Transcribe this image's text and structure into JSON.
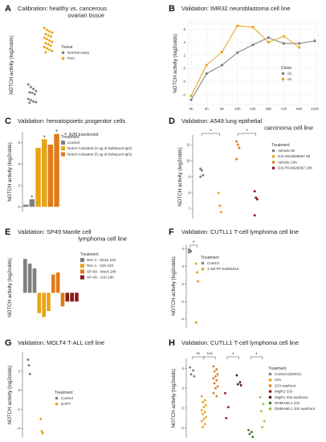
{
  "colors": {
    "gray": "#7f7f7f",
    "gold": "#e8a317",
    "orange_light": "#f2a93b",
    "orange": "#e07b1a",
    "darkorange": "#c65f14",
    "darkred": "#8b1a1a",
    "maroon": "#5a1020",
    "olive": "#3e7a1f",
    "green": "#8fc63f"
  },
  "ylabel": "NOTCH activity (log2odds)",
  "chart_data": [
    {
      "panel": "A",
      "type": "scatter",
      "title": "Calibration: healthy vs. cancerous ovarian tissue",
      "ylabel": "NOTCH activity (log2odds)",
      "legend": {
        "title": "Tissue",
        "entries": [
          "Normal ovary",
          "PSC"
        ],
        "placement": "right"
      },
      "series": [
        {
          "name": "Normal ovary",
          "color": "gray",
          "values": [
            -4.2,
            -4.6,
            -4.9,
            -5.2,
            -5.4,
            -5.5,
            -5.7,
            -6.4,
            -6.6,
            -6.8,
            -6.9,
            -7.0
          ]
        },
        {
          "name": "PSC",
          "color": "gold",
          "values": [
            4.4,
            4.1,
            3.9,
            3.7,
            3.5,
            3.3,
            3.1,
            2.9,
            2.7,
            2.5,
            2.3,
            2.1,
            1.9,
            1.7,
            1.5,
            1.3,
            1.1,
            0.9,
            0.7
          ]
        }
      ],
      "ylim": [
        -7.5,
        5
      ]
    },
    {
      "panel": "B",
      "type": "line",
      "title": "Validation: IMR32 neuroblastoma cell line",
      "ylabel": "NOTCH activity (log2odds)",
      "categories": [
        "0h",
        "4h",
        "8h",
        "12h",
        "24h",
        "48h",
        "72h",
        "96h",
        "120h"
      ],
      "yticks": [
        -4,
        -2,
        0,
        2,
        4,
        6
      ],
      "legend": {
        "title": "Clone",
        "entries": [
          "c6",
          "c8"
        ],
        "placement": "right"
      },
      "series": [
        {
          "name": "c6",
          "color": "gray",
          "values": [
            -4.8,
            -0.8,
            0.5,
            2.4,
            3.6,
            4.7,
            3.8,
            3.8,
            4.2
          ]
        },
        {
          "name": "c8",
          "color": "gold",
          "values": [
            -4.2,
            0.5,
            2.5,
            6.5,
            6.3,
            4.0,
            4.9,
            3.2,
            null
          ]
        }
      ],
      "ylim": [
        -5.5,
        7
      ]
    },
    {
      "panel": "C",
      "type": "bar",
      "title": "Validation: hematopoietic progenitor cells",
      "ylabel": "NOTCH activity (log2odds)",
      "yticks": [
        0,
        2,
        4,
        6
      ],
      "annotation": "A2M transfected",
      "legend": {
        "title": "Treatment",
        "entries": [
          "Control",
          "Notch-Activated (2 ug of Delta1ext-IgG)",
          "Notch-Activated (5 ug of Delta1ext-IgG)"
        ],
        "placement": "right"
      },
      "bars": [
        {
          "group": "Control",
          "value": 0.2,
          "color": "gray"
        },
        {
          "group": "Control",
          "value": 0.7,
          "color": "gray",
          "marker": true
        },
        {
          "group": "Notch-Activated (2 ug of Delta1ext-IgG)",
          "value": 5.5,
          "color": "gold"
        },
        {
          "group": "Notch-Activated (2 ug of Delta1ext-IgG)",
          "value": 6.3,
          "color": "gold",
          "marker": true
        },
        {
          "group": "Notch-Activated (5 ug of Delta1ext-IgG)",
          "value": 5.8,
          "color": "orange"
        },
        {
          "group": "Notch-Activated (5 ug of Delta1ext-IgG)",
          "value": 6.8,
          "color": "orange",
          "marker": true
        }
      ],
      "ylim": [
        -0.5,
        7
      ]
    },
    {
      "panel": "D",
      "type": "scatter",
      "title": "Validation: A549 lung epithelial carcinoma cell line",
      "ylabel": "NOTCH activity (log2odds)",
      "yticks": [
        7,
        8,
        9,
        10,
        11
      ],
      "significance": [
        "*",
        "*"
      ],
      "legend": {
        "title": "Treatment",
        "entries": [
          "Vehicle 6h",
          "GSI RO4929097 6h",
          "Vehicle 24h",
          "GSI RO4929097 24h"
        ],
        "placement": "right"
      },
      "series": [
        {
          "name": "Vehicle 6h",
          "color": "gray",
          "values": [
            9.5,
            9.4,
            9.1,
            9.0
          ]
        },
        {
          "name": "GSI RO4929097 6h",
          "color": "gold",
          "values": [
            8.0,
            7.2,
            6.8
          ]
        },
        {
          "name": "Vehicle 24h",
          "color": "orange",
          "values": [
            11.2,
            11.0,
            10.8,
            10.1
          ]
        },
        {
          "name": "GSI RO4929097 24h",
          "color": "darkred",
          "values": [
            8.1,
            7.7,
            7.6,
            6.6
          ]
        }
      ],
      "ylim": [
        6.4,
        11.6
      ]
    },
    {
      "panel": "E",
      "type": "bar",
      "title": "Validation: SP49 Mantle cell lymphoma cell line",
      "ylabel": "NOTCH activity (log2odds)",
      "legend": {
        "title": "Treatment",
        "entries": [
          "Rec-1 - Mock 24h",
          "Rec-1 - GSI 24h",
          "SP-49 - Mock 24h",
          "SP-49 - GSI 24h"
        ],
        "placement": "right"
      },
      "bars": [
        {
          "group": "Rec-1 - Mock 24h",
          "value": 5.0,
          "color": "gray"
        },
        {
          "group": "Rec-1 - Mock 24h",
          "value": 4.3,
          "color": "gray"
        },
        {
          "group": "Rec-1 - Mock 24h",
          "value": 3.6,
          "color": "gray"
        },
        {
          "group": "Rec-1 - GSI 24h",
          "value": -3.0,
          "color": "gold"
        },
        {
          "group": "Rec-1 - GSI 24h",
          "value": -3.6,
          "color": "gold"
        },
        {
          "group": "Rec-1 - GSI 24h",
          "value": -2.7,
          "color": "gold"
        },
        {
          "group": "SP-49 - Mock 24h",
          "value": 2.7,
          "color": "orange"
        },
        {
          "group": "SP-49 - Mock 24h",
          "value": 3.0,
          "color": "orange"
        },
        {
          "group": "SP-49 - Mock 24h",
          "value": -2.0,
          "color": "orange"
        },
        {
          "group": "SP-49 - GSI 24h",
          "value": -1.3,
          "color": "darkred"
        },
        {
          "group": "SP-49 - GSI 24h",
          "value": -1.3,
          "color": "darkred"
        },
        {
          "group": "SP-49 - GSI 24h",
          "value": -1.3,
          "color": "darkred"
        }
      ],
      "ylim": [
        -4,
        5.5
      ]
    },
    {
      "panel": "F",
      "type": "scatter",
      "title": "Validation: CUTLL1 T-cell lymphoma cell line",
      "ylabel": "NOTCH activity (log2odds)",
      "yticks": [
        -4,
        -2,
        0,
        2,
        4
      ],
      "significance": [
        "*"
      ],
      "legend": {
        "title": "Treatment",
        "entries": [
          "Control",
          "1 uM PF-03084014"
        ],
        "placement": "right"
      },
      "series": [
        {
          "name": "Control",
          "color": "gray",
          "values": [
            3.9,
            3.8,
            3.7,
            3.6
          ]
        },
        {
          "name": "1 uM PF-03084014",
          "color": "gold",
          "values": [
            2.3,
            1.3,
            0.3,
            -4.4
          ]
        }
      ],
      "ylim": [
        -5,
        4.5
      ]
    },
    {
      "panel": "G",
      "type": "scatter",
      "title": "Validation: MOLT4 T-ALL cell line",
      "ylabel": "NOTCH activity (log2odds)",
      "yticks": [
        -4,
        -2,
        0,
        2
      ],
      "legend": {
        "title": "Treatment",
        "entries": [
          "Control",
          "DAPT"
        ],
        "placement": "right"
      },
      "series": [
        {
          "name": "Control",
          "color": "gray",
          "values": [
            3.2,
            2.6,
            1.7
          ]
        },
        {
          "name": "DAPT",
          "color": "gold",
          "values": [
            -3.0,
            -4.3,
            -4.5
          ]
        }
      ],
      "ylim": [
        -5,
        4
      ]
    },
    {
      "panel": "H",
      "type": "scatter",
      "title": "Validation: CUTLL1 T-cell lymphoma cell line",
      "ylabel": "NOTCH activity (log2odds)",
      "yticks": [
        -2,
        0,
        2,
        4
      ],
      "significance": [
        "**",
        "***",
        "*",
        "*"
      ],
      "legend": {
        "title": "Treatment",
        "entries": [
          "Control (DMSO)",
          "GSI",
          "GSI washout",
          "MigR1 GSI",
          "MigR1 GSI washout",
          "DNMAML1 GSI",
          "DNMAML1 GSI washout"
        ],
        "placement": "right"
      },
      "series": [
        {
          "name": "Control (DMSO)",
          "color": "gray",
          "values": [
            4.1,
            3.8,
            3.4,
            3.2
          ]
        },
        {
          "name": "GSI",
          "color": "gold",
          "values": [
            1.2,
            0.8,
            0.6,
            0.3,
            0.1,
            -0.2,
            -0.4,
            -0.6,
            -0.9,
            -1.1,
            -1.3,
            -1.6,
            -1.9
          ]
        },
        {
          "name": "GSI washout",
          "color": "orange",
          "values": [
            4.2,
            3.9,
            3.7,
            3.4,
            3.2,
            3.0,
            2.8,
            2.5,
            2.2,
            2.0,
            1.5,
            1.2
          ]
        },
        {
          "name": "MigR1 GSI",
          "color": "darkred",
          "values": [
            1.5,
            0.1,
            -1.0
          ]
        },
        {
          "name": "MigR1 GSI washout",
          "color": "maroon",
          "values": [
            3.3,
            2.6,
            2.4,
            2.3
          ]
        },
        {
          "name": "DNMAML1 GSI",
          "color": "olive",
          "values": [
            -2.2,
            -2.4,
            -2.6,
            -2.9
          ]
        },
        {
          "name": "DNMAML1 GSI washout",
          "color": "green",
          "values": [
            1.1,
            0.4,
            -0.3,
            -1.3,
            -1.9
          ]
        }
      ],
      "ylim": [
        -3,
        5
      ]
    }
  ]
}
